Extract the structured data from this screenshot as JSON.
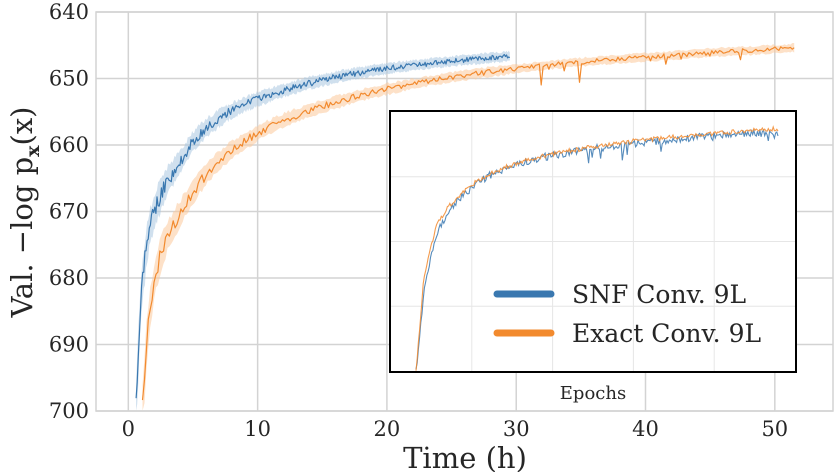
{
  "chart_data": {
    "type": "line",
    "xlabel": "Time (h)",
    "ylabel": "Val. −log p",
    "ylabel_sub": "x",
    "ylabel_arg": "(x)",
    "xlim": [
      -2.5,
      54.5
    ],
    "ylim": [
      700,
      640
    ],
    "y_inverted": true,
    "xticks": [
      0,
      10,
      20,
      30,
      40,
      50
    ],
    "yticks": [
      640,
      650,
      660,
      670,
      680,
      690,
      700
    ],
    "grid": true,
    "series": [
      {
        "name": "SNF Conv. 9L",
        "color": "#3a78b0",
        "band_color": "#a9c6e0",
        "x": [
          0.6,
          0.8,
          1.0,
          1.3,
          1.6,
          2.0,
          2.5,
          3.0,
          3.5,
          4.0,
          5.0,
          6.0,
          7.0,
          8.0,
          9.0,
          10.0,
          12.0,
          14.0,
          16.0,
          18.0,
          20.0,
          22.0,
          24.0,
          26.0,
          28.0,
          29.5
        ],
        "y": [
          700,
          690,
          682,
          677,
          673,
          670,
          667.5,
          665.5,
          664,
          662.5,
          659.5,
          657.5,
          656,
          654.8,
          653.9,
          653.1,
          651.8,
          650.7,
          649.8,
          649.1,
          648.5,
          648.0,
          647.6,
          647.2,
          646.9,
          646.7
        ],
        "band": [
          3.5,
          3.5,
          3.0,
          3.0,
          2.5,
          2.5,
          2.2,
          2.0,
          1.8,
          1.6,
          1.4,
          1.3,
          1.2,
          1.1,
          1.0,
          1.0,
          0.9,
          0.9,
          0.8,
          0.8,
          0.8,
          0.7,
          0.7,
          0.7,
          0.7,
          0.7
        ]
      },
      {
        "name": "Exact Conv. 9L",
        "color": "#f28a2e",
        "band_color": "#fbc99a",
        "x": [
          1.1,
          1.4,
          1.8,
          2.2,
          2.7,
          3.2,
          4.0,
          5.0,
          6.0,
          7.0,
          8.0,
          10.0,
          12.0,
          14.0,
          16.0,
          18.0,
          20.0,
          22.0,
          25.0,
          28.0,
          31.0,
          34.0,
          37.0,
          40.0,
          43.0,
          46.0,
          49.0,
          51.5
        ],
        "y": [
          700,
          690,
          683,
          678.5,
          675.3,
          673,
          670.3,
          667,
          664.5,
          662.4,
          660.7,
          658.2,
          656.3,
          654.8,
          653.6,
          652.5,
          651.6,
          650.8,
          649.8,
          649.0,
          648.3,
          647.7,
          647.2,
          646.8,
          646.4,
          646.0,
          645.7,
          645.4
        ],
        "band": [
          3.0,
          3.0,
          2.8,
          2.5,
          2.2,
          2.0,
          1.8,
          1.6,
          1.4,
          1.3,
          1.2,
          1.1,
          1.0,
          0.9,
          0.9,
          0.8,
          0.8,
          0.7,
          0.7,
          0.7,
          0.6,
          0.6,
          0.6,
          0.6,
          0.6,
          0.6,
          0.6,
          0.6
        ]
      }
    ],
    "inset": {
      "title": "Epochs",
      "ylim": [
        700,
        640
      ],
      "x": [
        0.0,
        0.02,
        0.04,
        0.06,
        0.09,
        0.12,
        0.16,
        0.2,
        0.25,
        0.3,
        0.36,
        0.42,
        0.5,
        0.6,
        0.7,
        0.8,
        0.9,
        1.0
      ],
      "series_y": [
        [
          700,
          684,
          675,
          670,
          665.5,
          662.8,
          660.0,
          658.0,
          656.2,
          655.0,
          653.8,
          652.9,
          652.0,
          651.0,
          650.2,
          649.5,
          649.0,
          648.6
        ],
        [
          700,
          681,
          673,
          668,
          664.5,
          662.0,
          659.5,
          657.7,
          656.0,
          654.7,
          653.5,
          652.6,
          651.6,
          650.5,
          649.7,
          649.0,
          648.4,
          647.9
        ]
      ]
    },
    "legend_position": "lower-right (inside inset)"
  }
}
